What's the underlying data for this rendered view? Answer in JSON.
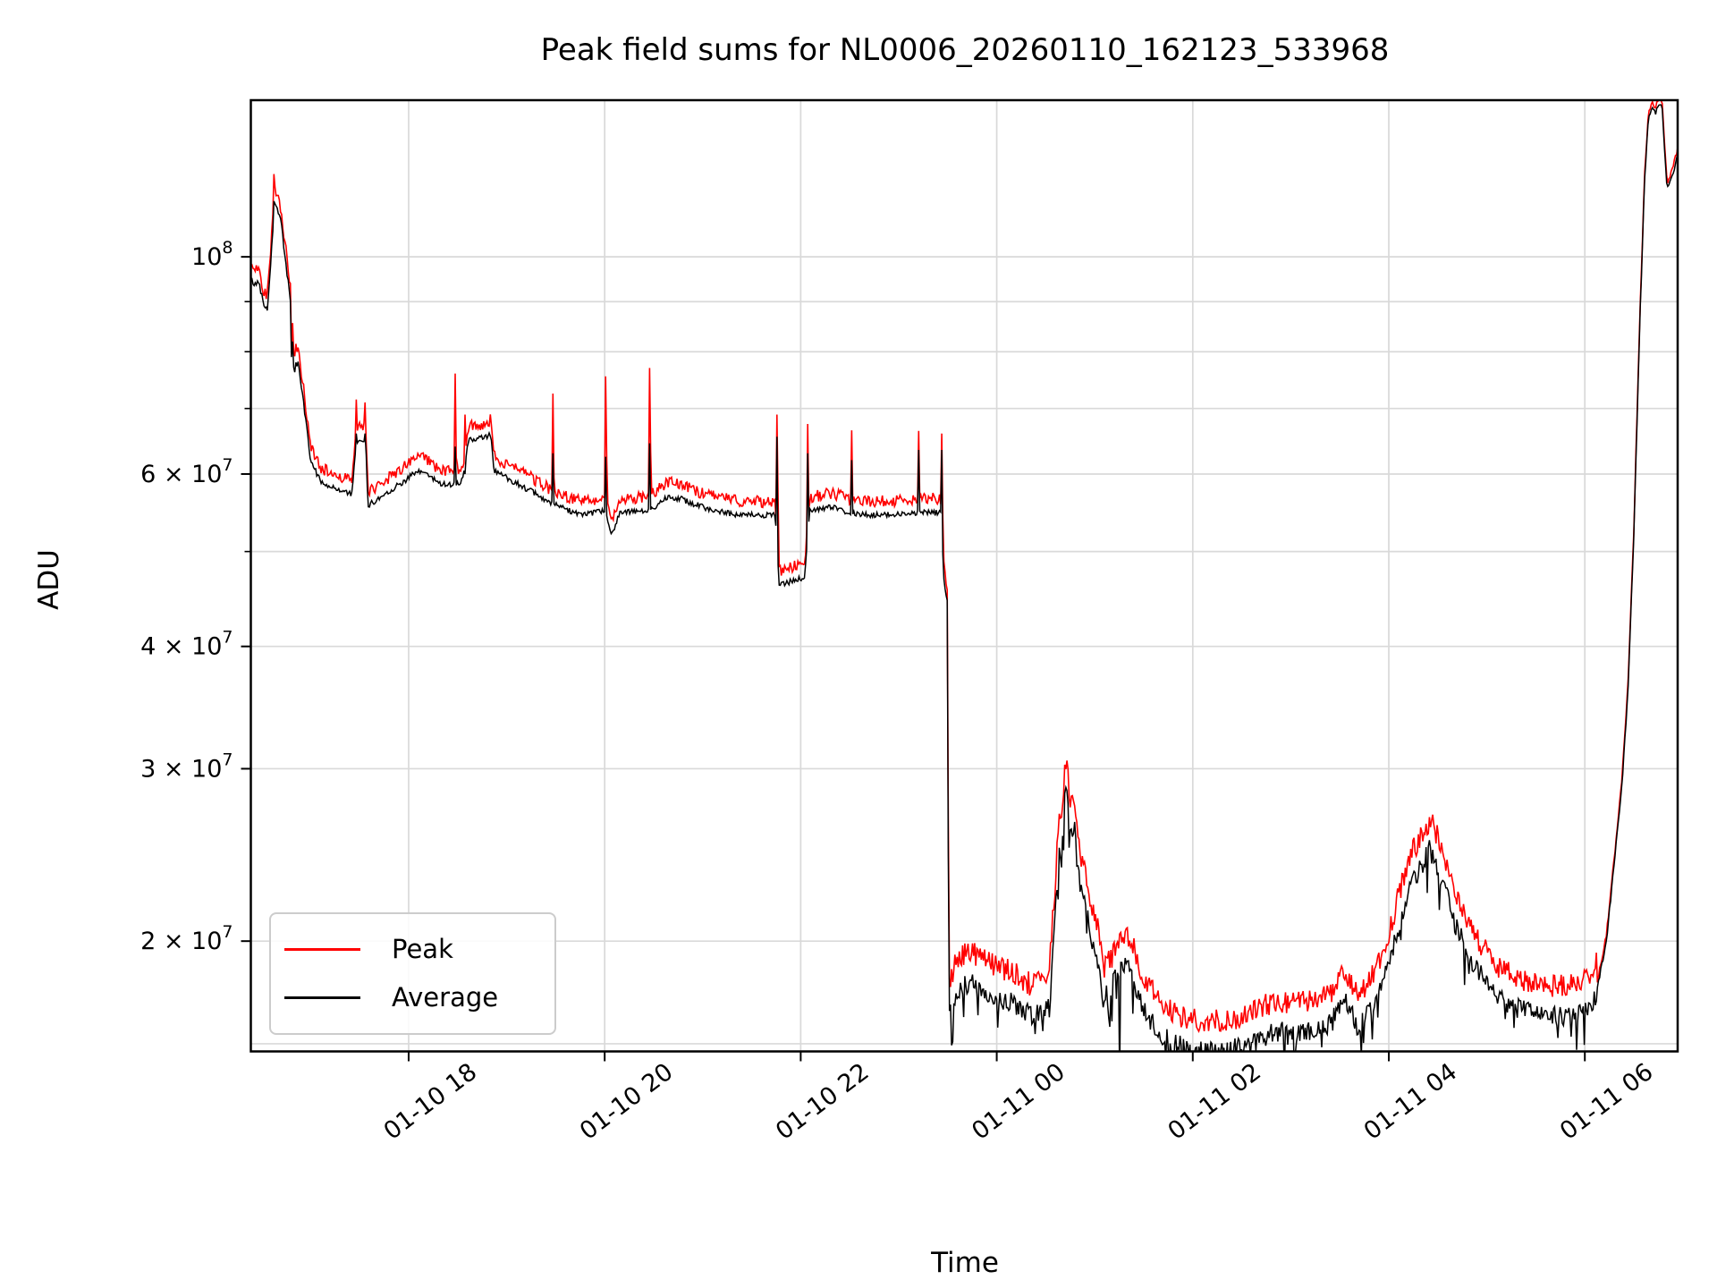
{
  "title": "Peak field sums for NL0006_20260110_162123_533968",
  "xlabel": "Time",
  "ylabel": "ADU",
  "legend": [
    {
      "label": "Peak",
      "color": "#ff0000"
    },
    {
      "label": "Average",
      "color": "#000000"
    }
  ],
  "chart_data": {
    "type": "line",
    "title": "Peak field sums for NL0006_20260110_162123_533968",
    "xlabel": "Time",
    "ylabel": "ADU",
    "y_scale": "log",
    "grid": true,
    "legend_position": "lower left",
    "x_unit": "hours since 2026-01-10 00:00",
    "xlim": [
      16.39,
      30.947
    ],
    "ylim": [
      15430000,
      144550000
    ],
    "x_ticks": [
      {
        "t": 18,
        "label": "01-10 18"
      },
      {
        "t": 20,
        "label": "01-10 20"
      },
      {
        "t": 22,
        "label": "01-10 22"
      },
      {
        "t": 24,
        "label": "01-11 00"
      },
      {
        "t": 26,
        "label": "01-11 02"
      },
      {
        "t": 28,
        "label": "01-11 04"
      },
      {
        "t": 30,
        "label": "01-11 06"
      }
    ],
    "y_ticks": [
      {
        "v": 100000000,
        "mantissa": "10",
        "exp": "8"
      },
      {
        "v": 60000000,
        "mantissa": "6 × 10",
        "exp": "7"
      },
      {
        "v": 40000000,
        "mantissa": "4 × 10",
        "exp": "7"
      },
      {
        "v": 30000000,
        "mantissa": "3 × 10",
        "exp": "7"
      },
      {
        "v": 20000000,
        "mantissa": "2 × 10",
        "exp": "7"
      }
    ],
    "y_minor_ticks": [
      90000000,
      80000000,
      70000000,
      50000000
    ],
    "y_gridlines": [
      100000000,
      90000000,
      80000000,
      70000000,
      60000000,
      50000000,
      40000000,
      30000000,
      20000000,
      15710000
    ],
    "series": [
      {
        "name": "Average",
        "color": "#000000",
        "anchors": [
          [
            16.39,
            95000000.0
          ],
          [
            16.43,
            93500000.0
          ],
          [
            16.47,
            94500000.0
          ],
          [
            16.52,
            89500000.0
          ],
          [
            16.56,
            88500000.0
          ],
          [
            16.61,
            105000000.0
          ],
          [
            16.63,
            113000000.0
          ],
          [
            16.66,
            112500000.0
          ],
          [
            16.7,
            108000000.0
          ],
          [
            16.75,
            98000000.0
          ],
          [
            16.8,
            89000000.0
          ],
          [
            16.83,
            76000000.0
          ],
          [
            16.87,
            78000000.0
          ],
          [
            16.92,
            72000000.0
          ],
          [
            17.0,
            62000000.0
          ],
          [
            17.1,
            59000000.0
          ],
          [
            17.2,
            58200000.0
          ],
          [
            17.3,
            57800000.0
          ],
          [
            17.42,
            57200000.0
          ],
          [
            17.47,
            65000000.0
          ],
          [
            17.52,
            64500000.0
          ],
          [
            17.56,
            65000000.0
          ],
          [
            17.585,
            55800000.0
          ],
          [
            17.65,
            56200000.0
          ],
          [
            17.75,
            57200000.0
          ],
          [
            17.9,
            58500000.0
          ],
          [
            18.05,
            60000000.0
          ],
          [
            18.15,
            60400000.0
          ],
          [
            18.3,
            58800000.0
          ],
          [
            18.42,
            58500000.0
          ],
          [
            18.55,
            59000000.0
          ],
          [
            18.61,
            65000000.0
          ],
          [
            18.72,
            65200000.0
          ],
          [
            18.8,
            65500000.0
          ],
          [
            18.84,
            66000000.0
          ],
          [
            18.87,
            60500000.0
          ],
          [
            19.0,
            59500000.0
          ],
          [
            19.2,
            58000000.0
          ],
          [
            19.45,
            56000000.0
          ],
          [
            19.6,
            55200000.0
          ],
          [
            19.8,
            54500000.0
          ],
          [
            20.0,
            55000000.0
          ],
          [
            20.07,
            52000000.0
          ],
          [
            20.15,
            54800000.0
          ],
          [
            20.45,
            55000000.0
          ],
          [
            20.65,
            57000000.0
          ],
          [
            20.8,
            56500000.0
          ],
          [
            21.0,
            55500000.0
          ],
          [
            21.3,
            54600000.0
          ],
          [
            21.6,
            54400000.0
          ],
          [
            21.74,
            54500000.0
          ],
          [
            21.78,
            46200000.0
          ],
          [
            21.9,
            46600000.0
          ],
          [
            22.04,
            47000000.0
          ],
          [
            22.09,
            55000000.0
          ],
          [
            22.3,
            55500000.0
          ],
          [
            22.6,
            54500000.0
          ],
          [
            22.9,
            54500000.0
          ],
          [
            23.2,
            54800000.0
          ],
          [
            23.43,
            54800000.0
          ],
          [
            23.465,
            46000000.0
          ],
          [
            23.5,
            44500000.0
          ],
          [
            23.51,
            16800000.0
          ],
          [
            23.6,
            17900000.0
          ],
          [
            23.75,
            18100000.0
          ],
          [
            23.95,
            17600000.0
          ],
          [
            24.15,
            17300000.0
          ],
          [
            24.35,
            16800000.0
          ],
          [
            24.48,
            16900000.0
          ],
          [
            24.54,
            17800000.0
          ],
          [
            24.58,
            20000000.0
          ],
          [
            24.62,
            23500000.0
          ],
          [
            24.645,
            25200000.0
          ],
          [
            24.66,
            24200000.0
          ],
          [
            24.7,
            28600000.0
          ],
          [
            24.72,
            27800000.0
          ],
          [
            24.75,
            25800000.0
          ],
          [
            24.79,
            26400000.0
          ],
          [
            24.83,
            23500000.0
          ],
          [
            24.9,
            21800000.0
          ],
          [
            24.97,
            20000000.0
          ],
          [
            25.03,
            19200000.0
          ],
          [
            25.09,
            17400000.0
          ],
          [
            25.17,
            17900000.0
          ],
          [
            25.28,
            19000000.0
          ],
          [
            25.38,
            18500000.0
          ],
          [
            25.5,
            17000000.0
          ],
          [
            25.65,
            16200000.0
          ],
          [
            25.8,
            15700000.0
          ],
          [
            26.0,
            15500000.0
          ],
          [
            26.2,
            15400000.0
          ],
          [
            26.4,
            15500000.0
          ],
          [
            26.6,
            15700000.0
          ],
          [
            26.75,
            16000000.0
          ],
          [
            26.88,
            16200000.0
          ],
          [
            27.0,
            16000000.0
          ],
          [
            27.15,
            16200000.0
          ],
          [
            27.3,
            16300000.0
          ],
          [
            27.42,
            16500000.0
          ],
          [
            27.53,
            17600000.0
          ],
          [
            27.6,
            17000000.0
          ],
          [
            27.68,
            16300000.0
          ],
          [
            27.85,
            17200000.0
          ],
          [
            28.0,
            19000000.0
          ],
          [
            28.2,
            22500000.0
          ],
          [
            28.42,
            24800000.0
          ],
          [
            28.55,
            23000000.0
          ],
          [
            28.7,
            20500000.0
          ],
          [
            28.9,
            18700000.0
          ],
          [
            29.1,
            17600000.0
          ],
          [
            29.35,
            17000000.0
          ],
          [
            29.6,
            16700000.0
          ],
          [
            29.85,
            16800000.0
          ],
          [
            30.08,
            17100000.0
          ],
          [
            30.15,
            18400000.0
          ],
          [
            30.22,
            20000000.0
          ],
          [
            30.3,
            24000000.0
          ],
          [
            30.38,
            29000000.0
          ],
          [
            30.44,
            36000000.0
          ],
          [
            30.5,
            52000000.0
          ],
          [
            30.56,
            85000000.0
          ],
          [
            30.61,
            120000000.0
          ],
          [
            30.65,
            139000000.0
          ],
          [
            30.69,
            142000000.0
          ],
          [
            30.72,
            140000000.0
          ],
          [
            30.76,
            143500000.0
          ],
          [
            30.79,
            142000000.0
          ],
          [
            30.81,
            130000000.0
          ],
          [
            30.84,
            117500000.0
          ],
          [
            30.89,
            121000000.0
          ],
          [
            30.94,
            126000000.0
          ],
          [
            30.947,
            127000000.0
          ]
        ],
        "down_spikes": [
          [
            25.25,
            14500000.0
          ],
          [
            26.05,
            14700000.0
          ]
        ]
      },
      {
        "name": "Peak",
        "color": "#ff0000",
        "derived_from": "Average",
        "factor_regions": [
          {
            "t0": 16.39,
            "t1": 23.49,
            "factor": 1.028
          },
          {
            "t0": 23.49,
            "t1": 23.505,
            "factor": 1.02
          },
          {
            "t0": 23.505,
            "t1": 30.12,
            "factor": 1.065
          },
          {
            "t0": 30.12,
            "t1": 30.947,
            "factor": 1.012
          }
        ],
        "spikes": [
          [
            16.63,
            121500000.0,
            114000000.0
          ],
          [
            16.81,
            81000000.0,
            79000000.0
          ],
          [
            16.85,
            81500000.0,
            78000000.0
          ],
          [
            17.47,
            71500000.0,
            66000000.0
          ],
          [
            17.56,
            71000000.0,
            66000000.0
          ],
          [
            18.47,
            76000000.0,
            64000000.0
          ],
          [
            18.575,
            69000000.0,
            60000000.0
          ],
          [
            19.47,
            72500000.0,
            63000000.0
          ],
          [
            20.01,
            75500000.0,
            62500000.0
          ],
          [
            20.46,
            77000000.0,
            64500000.0
          ],
          [
            21.755,
            69000000.0,
            65500000.0
          ],
          [
            22.07,
            67500000.0,
            63000000.0
          ],
          [
            22.52,
            66500000.0,
            62000000.0
          ],
          [
            23.2,
            66400000.0,
            63500000.0
          ],
          [
            23.44,
            66000000.0,
            63500000.0
          ]
        ]
      }
    ],
    "noise_regions": [
      {
        "t0": 16.39,
        "t1": 23.49,
        "avg_amp": 0.007,
        "peak_amp": 0.014,
        "down_bias": false
      },
      {
        "t0": 23.49,
        "t1": 23.505,
        "avg_amp": 0.004,
        "peak_amp": 0.006,
        "down_bias": false
      },
      {
        "t0": 23.505,
        "t1": 30.12,
        "avg_amp": 0.025,
        "peak_amp": 0.028,
        "down_bias": true
      },
      {
        "t0": 30.12,
        "t1": 30.947,
        "avg_amp": 0.005,
        "peak_amp": 0.006,
        "down_bias": false
      }
    ]
  }
}
